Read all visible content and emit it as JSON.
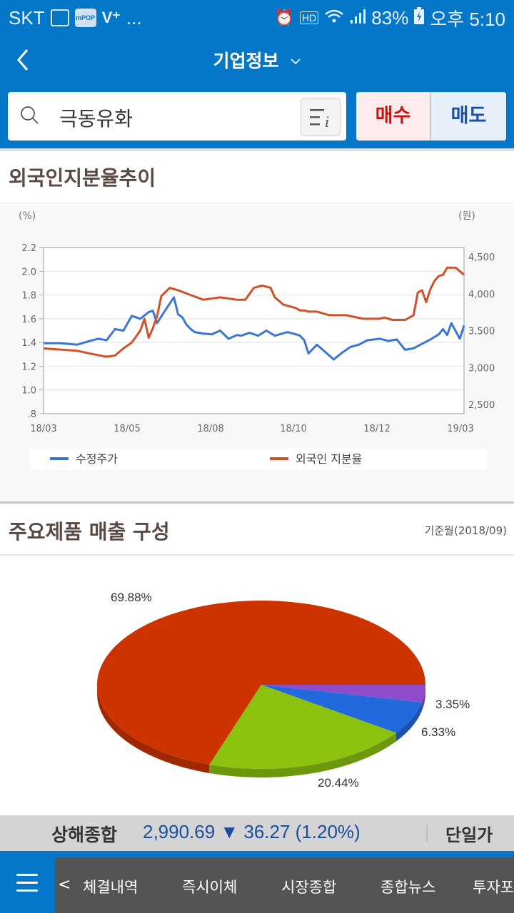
{
  "status_bar": {
    "carrier": "SKT",
    "left_icons": [
      "gallery-icon",
      "mpop-icon",
      "volte-icon",
      "more-icon"
    ],
    "mpop_label": "mPOP",
    "more": "...",
    "right_icons": [
      "alarm-icon",
      "hd-voice-icon",
      "wifi-icon",
      "signal-icon",
      "battery-charging-icon"
    ],
    "battery": "83%",
    "time": "오후 5:10"
  },
  "header": {
    "back_label": "<",
    "title": "기업정보",
    "title_chevron": "v"
  },
  "search": {
    "value": "극동유화",
    "info_button": "stock-info-list-icon"
  },
  "trade": {
    "buy_label": "매수",
    "sell_label": "매도",
    "buy_color": "#cc1212",
    "sell_color": "#1a4fa0"
  },
  "section1": {
    "title": "외국인지분율추이"
  },
  "section2": {
    "title": "주요제품 매출 구성",
    "base_date": "기준월(2018/09)"
  },
  "chart_data": [
    {
      "type": "line",
      "title": "외국인지분율추이",
      "x_ticks": [
        "18/03",
        "18/05",
        "18/08",
        "18/10",
        "18/12",
        "19/03"
      ],
      "left_axis": {
        "unit": "(%)",
        "ticks": [
          "2.2",
          "2.0",
          "1.8",
          "1.6",
          "1.4",
          "1.2",
          "1.0",
          ".8"
        ],
        "range": [
          0.8,
          2.2
        ]
      },
      "right_axis": {
        "unit": "(원)",
        "ticks": [
          "4,500",
          "4,000",
          "3,500",
          "3,000",
          "2,500"
        ],
        "range": [
          2400,
          4750
        ]
      },
      "grid": true,
      "legend_position": "bottom",
      "series": [
        {
          "name": "수정주가",
          "axis": "right",
          "color": "#3a76d6",
          "x": [
            0,
            0.04,
            0.08,
            0.11,
            0.13,
            0.15,
            0.17,
            0.19,
            0.21,
            0.23,
            0.25,
            0.26,
            0.27,
            0.29,
            0.31,
            0.32,
            0.33,
            0.34,
            0.35,
            0.36,
            0.38,
            0.4,
            0.42,
            0.44,
            0.46,
            0.47,
            0.49,
            0.51,
            0.53,
            0.55,
            0.58,
            0.6,
            0.61,
            0.62,
            0.63,
            0.65,
            0.67,
            0.69,
            0.71,
            0.73,
            0.75,
            0.77,
            0.8,
            0.82,
            0.84,
            0.86,
            0.88,
            0.9,
            0.92,
            0.94,
            0.95,
            0.96,
            0.97,
            0.99,
            1.0
          ],
          "values": [
            3330,
            3330,
            3310,
            3360,
            3390,
            3370,
            3520,
            3500,
            3700,
            3660,
            3750,
            3770,
            3600,
            3780,
            3950,
            3720,
            3680,
            3580,
            3520,
            3480,
            3460,
            3450,
            3500,
            3390,
            3440,
            3430,
            3470,
            3430,
            3500,
            3430,
            3480,
            3450,
            3430,
            3370,
            3190,
            3310,
            3210,
            3110,
            3200,
            3280,
            3310,
            3370,
            3390,
            3360,
            3380,
            3240,
            3260,
            3320,
            3380,
            3450,
            3520,
            3440,
            3600,
            3390,
            3570
          ]
        },
        {
          "name": "외국인 지분율",
          "axis": "left",
          "color": "#d0502a",
          "x": [
            0,
            0.04,
            0.08,
            0.12,
            0.15,
            0.17,
            0.19,
            0.21,
            0.23,
            0.24,
            0.25,
            0.26,
            0.27,
            0.28,
            0.3,
            0.32,
            0.35,
            0.38,
            0.42,
            0.46,
            0.48,
            0.5,
            0.52,
            0.54,
            0.55,
            0.57,
            0.59,
            0.6,
            0.61,
            0.62,
            0.63,
            0.65,
            0.68,
            0.72,
            0.76,
            0.79,
            0.8,
            0.81,
            0.83,
            0.86,
            0.88,
            0.89,
            0.9,
            0.91,
            0.92,
            0.93,
            0.94,
            0.95,
            0.96,
            0.98,
            1.0
          ],
          "values": [
            1.35,
            1.34,
            1.33,
            1.3,
            1.28,
            1.29,
            1.35,
            1.4,
            1.5,
            1.6,
            1.44,
            1.52,
            1.62,
            1.79,
            1.86,
            1.84,
            1.8,
            1.76,
            1.78,
            1.76,
            1.76,
            1.86,
            1.88,
            1.86,
            1.78,
            1.72,
            1.7,
            1.69,
            1.67,
            1.67,
            1.66,
            1.66,
            1.63,
            1.63,
            1.6,
            1.6,
            1.6,
            1.61,
            1.59,
            1.59,
            1.63,
            1.82,
            1.84,
            1.74,
            1.85,
            1.92,
            1.96,
            1.97,
            2.03,
            2.03,
            1.97
          ]
        }
      ]
    },
    {
      "type": "pie",
      "title": "주요제품 매출 구성",
      "subtitle": "기준월(2018/09)",
      "labels": [
        "69.88%",
        "20.44%",
        "6.33%",
        "3.35%"
      ],
      "values": [
        69.88,
        20.44,
        6.33,
        3.35
      ],
      "colors": [
        "#cc3300",
        "#8cc10f",
        "#2269dd",
        "#8e4ccc"
      ],
      "style": "3d"
    }
  ],
  "ticker": {
    "index_name": "상해종합",
    "value_text": "2,990.69 ▼ 36.27 (1.20%)",
    "value": "2,990.69",
    "direction": "down",
    "change": "36.27",
    "change_pct": "1.20%",
    "mode_label": "단일가"
  },
  "bottom_nav": {
    "menu_icon": "hamburger-menu-icon",
    "prev_label": "<",
    "items": [
      {
        "label": "체결내역"
      },
      {
        "label": "즉시이체"
      },
      {
        "label": "시장종합"
      },
      {
        "label": "종합뉴스"
      },
      {
        "label": "투자포"
      }
    ]
  }
}
